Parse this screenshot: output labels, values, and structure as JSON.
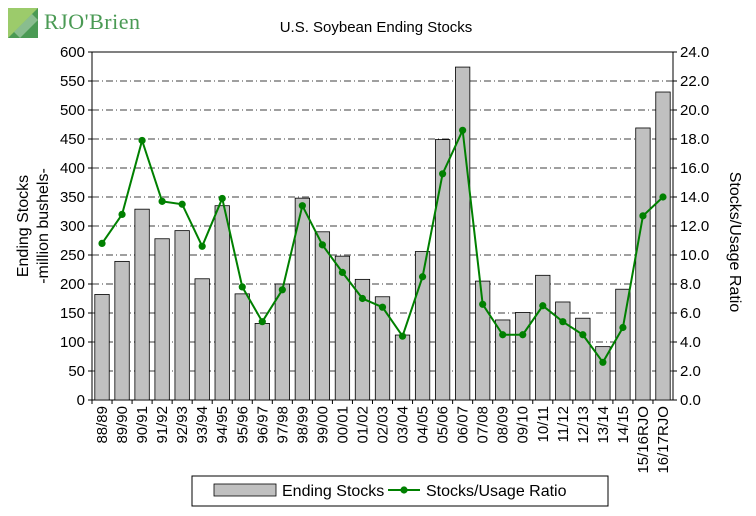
{
  "brand": {
    "logo_text": "RJO'Brien",
    "logo_color": "#4a9a54"
  },
  "chart_data": {
    "type": "bar",
    "title": "U.S. Soybean Ending Stocks",
    "ylabel": "Ending Stocks\n-million bushels-",
    "y2label": "Stocks/Usage Ratio",
    "xlabel": "",
    "ylim": [
      0,
      600
    ],
    "y2lim": [
      0,
      24
    ],
    "yticks": [
      "0",
      "50",
      "100",
      "150",
      "200",
      "250",
      "300",
      "350",
      "400",
      "450",
      "500",
      "550",
      "600"
    ],
    "y2ticks": [
      "0.0",
      "2.0",
      "4.0",
      "6.0",
      "8.0",
      "10.0",
      "12.0",
      "14.0",
      "16.0",
      "18.0",
      "20.0",
      "22.0",
      "24.0"
    ],
    "grid": true,
    "legend": "bottom",
    "categories": [
      "88/89",
      "89/90",
      "90/91",
      "91/92",
      "92/93",
      "93/94",
      "94/95",
      "95/96",
      "96/97",
      "97/98",
      "98/99",
      "99/00",
      "00/01",
      "01/02",
      "02/03",
      "03/04",
      "04/05",
      "05/06",
      "06/07",
      "07/08",
      "08/09",
      "09/10",
      "10/11",
      "11/12",
      "12/13",
      "13/14",
      "14/15",
      "15/16RJO",
      "16/17RJO"
    ],
    "series": [
      {
        "name": "Ending Stocks",
        "kind": "bar",
        "axis": "left",
        "color": "#c0c0c0",
        "values": [
          182,
          239,
          329,
          278,
          292,
          209,
          335,
          183,
          132,
          200,
          348,
          290,
          248,
          208,
          178,
          112,
          256,
          449,
          574,
          205,
          138,
          151,
          215,
          169,
          141,
          92,
          191,
          469,
          531
        ]
      },
      {
        "name": "Stocks/Usage Ratio",
        "kind": "line",
        "axis": "right",
        "color": "#008000",
        "values": [
          10.8,
          12.8,
          17.9,
          13.7,
          13.5,
          10.6,
          13.9,
          7.8,
          5.4,
          7.6,
          13.4,
          10.7,
          8.8,
          7.0,
          6.4,
          4.4,
          8.5,
          15.6,
          18.6,
          6.6,
          4.5,
          4.5,
          6.5,
          5.4,
          4.5,
          2.6,
          5.0,
          12.7,
          14.0
        ]
      }
    ]
  }
}
